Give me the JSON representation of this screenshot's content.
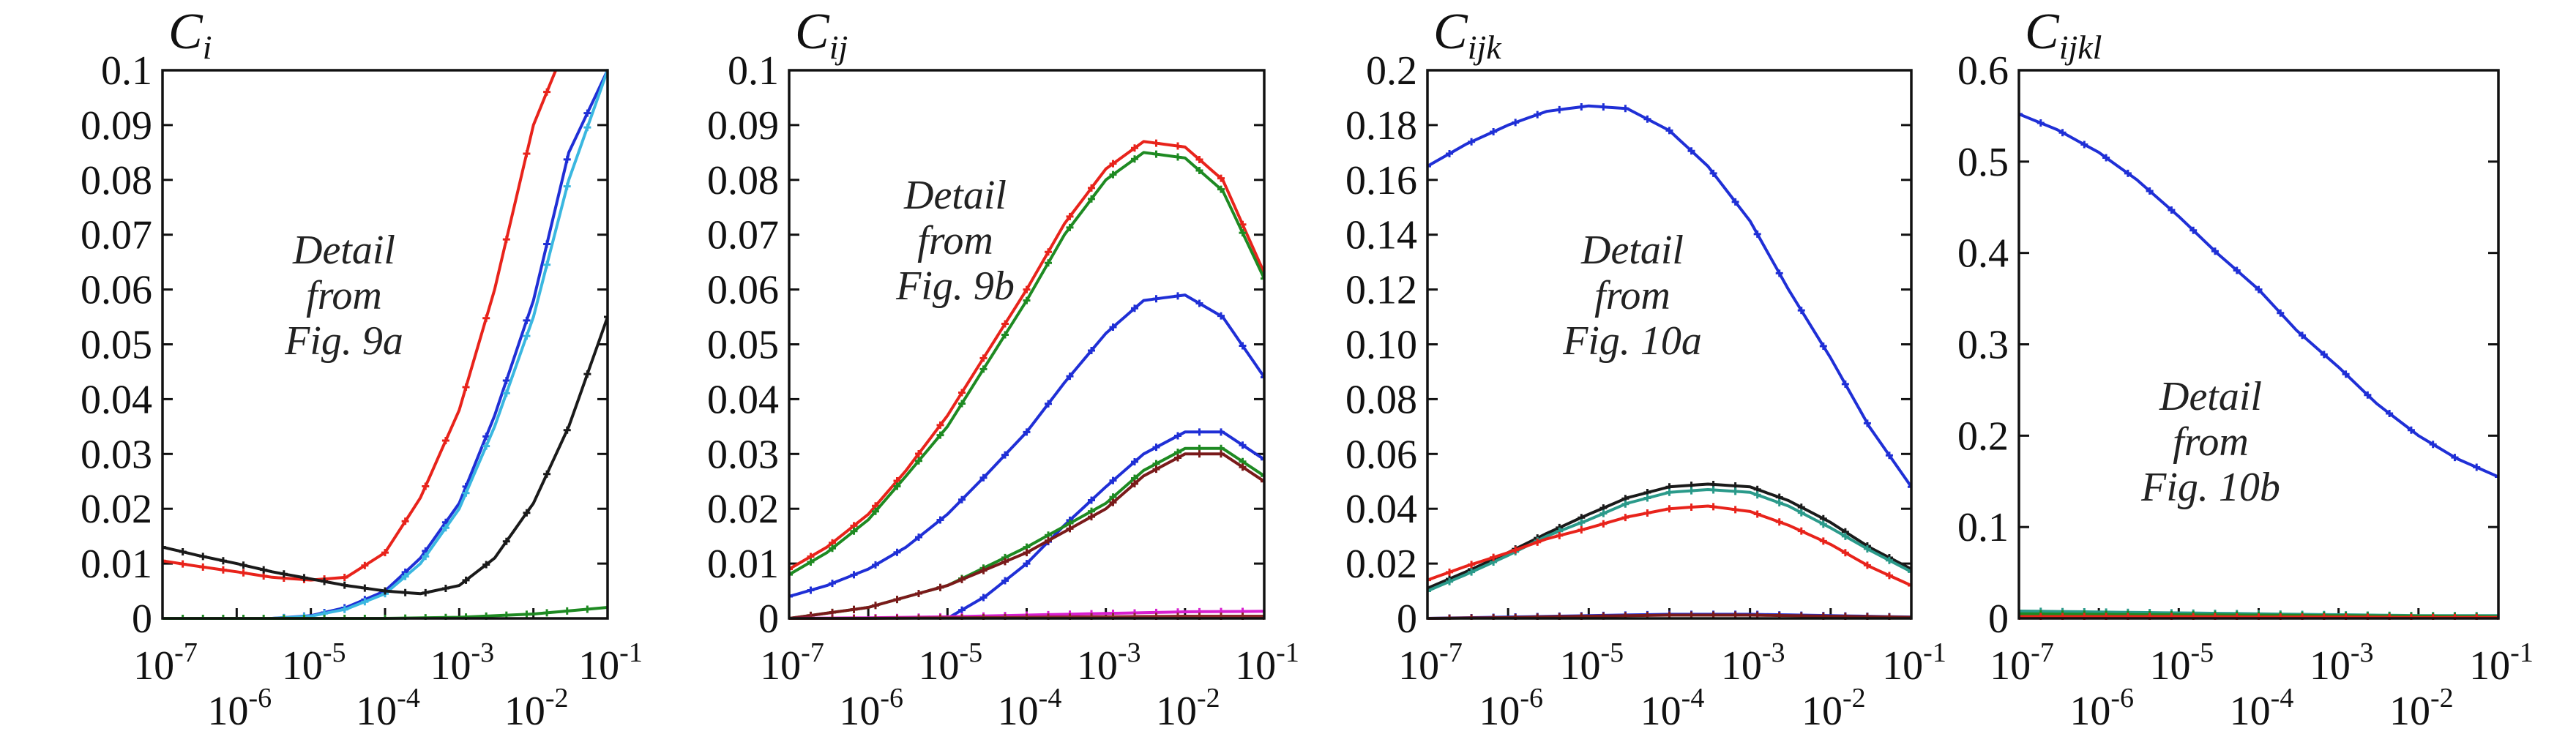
{
  "chart_data": [
    {
      "type": "line",
      "title": "C",
      "title_sub": "i",
      "xscale": "log",
      "xlim": [
        1e-07,
        0.1
      ],
      "ylim": [
        0,
        0.1
      ],
      "yticks": [
        "0",
        "0.01",
        "0.02",
        "0.03",
        "0.04",
        "0.05",
        "0.06",
        "0.07",
        "0.08",
        "0.09",
        "0.1"
      ],
      "xticks": [
        {
          "base": "10",
          "exp": "-7"
        },
        {
          "base": "10",
          "exp": "-6"
        },
        {
          "base": "10",
          "exp": "-5"
        },
        {
          "base": "10",
          "exp": "-4"
        },
        {
          "base": "10",
          "exp": "-3"
        },
        {
          "base": "10",
          "exp": "-2"
        },
        {
          "base": "10",
          "exp": "-1"
        }
      ],
      "annotation": [
        "Detail",
        "from",
        "Fig. 9a"
      ],
      "series": [
        {
          "color": "#e8231b",
          "x": [
            1e-07,
            3e-07,
            1e-06,
            3e-06,
            1e-05,
            3e-05,
            0.0001,
            0.0003,
            0.001,
            0.003,
            0.01,
            0.02
          ],
          "y": [
            0.0105,
            0.0095,
            0.0085,
            0.0075,
            0.007,
            0.0075,
            0.012,
            0.022,
            0.038,
            0.06,
            0.09,
            0.1
          ]
        },
        {
          "color": "#1f2fd6",
          "x": [
            3e-06,
            1e-05,
            3e-05,
            0.0001,
            0.0003,
            0.001,
            0.003,
            0.01,
            0.03,
            0.1
          ],
          "y": [
            0.0,
            0.0005,
            0.002,
            0.005,
            0.011,
            0.021,
            0.037,
            0.058,
            0.085,
            0.1
          ]
        },
        {
          "color": "#3ab7e0",
          "x": [
            3e-06,
            1e-05,
            3e-05,
            0.0001,
            0.0003,
            0.001,
            0.003,
            0.01,
            0.03,
            0.1
          ],
          "y": [
            0.0,
            0.0004,
            0.0017,
            0.0045,
            0.01,
            0.02,
            0.035,
            0.055,
            0.08,
            0.1
          ]
        },
        {
          "color": "#1a1a1a",
          "x": [
            1e-07,
            3e-07,
            1e-06,
            3e-06,
            1e-05,
            3e-05,
            0.0001,
            0.0003,
            0.001,
            0.003,
            0.01,
            0.03,
            0.1
          ],
          "y": [
            0.013,
            0.0115,
            0.01,
            0.0085,
            0.0072,
            0.006,
            0.005,
            0.0045,
            0.006,
            0.011,
            0.021,
            0.035,
            0.055
          ]
        },
        {
          "color": "#1e8a22",
          "x": [
            1e-07,
            1e-06,
            1e-05,
            0.0001,
            0.001,
            0.01,
            0.1
          ],
          "y": [
            0,
            0,
            0,
            0,
            0.0002,
            0.0008,
            0.002
          ]
        }
      ]
    },
    {
      "type": "line",
      "title": "C",
      "title_sub": "ij",
      "xscale": "log",
      "xlim": [
        1e-07,
        0.1
      ],
      "ylim": [
        0,
        0.1
      ],
      "yticks": [
        "0",
        "0.01",
        "0.02",
        "0.03",
        "0.04",
        "0.05",
        "0.06",
        "0.07",
        "0.08",
        "0.09",
        "0.1"
      ],
      "xticks": [
        {
          "base": "10",
          "exp": "-7"
        },
        {
          "base": "10",
          "exp": "-6"
        },
        {
          "base": "10",
          "exp": "-5"
        },
        {
          "base": "10",
          "exp": "-4"
        },
        {
          "base": "10",
          "exp": "-3"
        },
        {
          "base": "10",
          "exp": "-2"
        },
        {
          "base": "10",
          "exp": "-1"
        }
      ],
      "annotation": [
        "Detail",
        "from",
        "Fig. 9b"
      ],
      "series": [
        {
          "color": "#e8231b",
          "x": [
            1e-07,
            3e-07,
            1e-06,
            3e-06,
            1e-05,
            3e-05,
            0.0001,
            0.0003,
            0.001,
            0.003,
            0.01,
            0.03,
            0.1
          ],
          "y": [
            0.009,
            0.013,
            0.019,
            0.027,
            0.037,
            0.048,
            0.06,
            0.072,
            0.082,
            0.087,
            0.086,
            0.08,
            0.063
          ]
        },
        {
          "color": "#1e8a22",
          "x": [
            1e-07,
            3e-07,
            1e-06,
            3e-06,
            1e-05,
            3e-05,
            0.0001,
            0.0003,
            0.001,
            0.003,
            0.01,
            0.03,
            0.1
          ],
          "y": [
            0.008,
            0.012,
            0.018,
            0.026,
            0.035,
            0.046,
            0.058,
            0.07,
            0.08,
            0.085,
            0.084,
            0.078,
            0.062
          ]
        },
        {
          "color": "#1f2fd6",
          "x": [
            1e-07,
            3e-07,
            1e-06,
            3e-06,
            1e-05,
            3e-05,
            0.0001,
            0.0003,
            0.001,
            0.003,
            0.01,
            0.03,
            0.1
          ],
          "y": [
            0.004,
            0.006,
            0.009,
            0.013,
            0.019,
            0.026,
            0.034,
            0.043,
            0.052,
            0.058,
            0.059,
            0.055,
            0.044
          ]
        },
        {
          "color": "#1f2fd6",
          "x": [
            1e-05,
            3e-05,
            0.0001,
            0.0003,
            0.001,
            0.003,
            0.01,
            0.03,
            0.1
          ],
          "y": [
            0.0,
            0.004,
            0.01,
            0.017,
            0.024,
            0.03,
            0.034,
            0.034,
            0.029
          ]
        },
        {
          "color": "#1e8a22",
          "x": [
            1e-07,
            1e-06,
            1e-05,
            0.0001,
            0.001,
            0.003,
            0.01,
            0.03,
            0.1
          ],
          "y": [
            0.0,
            0.002,
            0.006,
            0.013,
            0.021,
            0.027,
            0.031,
            0.031,
            0.026
          ]
        },
        {
          "color": "#7a1a1a",
          "x": [
            1e-07,
            1e-06,
            1e-05,
            0.0001,
            0.001,
            0.003,
            0.01,
            0.03,
            0.1
          ],
          "y": [
            0.0,
            0.002,
            0.006,
            0.012,
            0.02,
            0.026,
            0.03,
            0.03,
            0.025
          ]
        },
        {
          "color": "#d81fd0",
          "x": [
            1e-07,
            1e-06,
            1e-05,
            0.0001,
            0.001,
            0.01,
            0.1
          ],
          "y": [
            0,
            0.0001,
            0.0003,
            0.0006,
            0.0009,
            0.0012,
            0.0013
          ]
        },
        {
          "color": "#8a2a2a",
          "x": [
            1e-07,
            1e-06,
            1e-05,
            0.0001,
            0.001,
            0.01,
            0.1
          ],
          "y": [
            0,
            0,
            0.0001,
            0.0002,
            0.0003,
            0.0004,
            0.0004
          ]
        }
      ]
    },
    {
      "type": "line",
      "title": "C",
      "title_sub": "ijk",
      "xscale": "log",
      "xlim": [
        1e-07,
        0.1
      ],
      "ylim": [
        0,
        0.2
      ],
      "yticks": [
        "0",
        "0.02",
        "0.04",
        "0.06",
        "0.08",
        "0.10",
        "0.12",
        "0.14",
        "0.16",
        "0.18",
        "0.2"
      ],
      "xticks": [
        {
          "base": "10",
          "exp": "-7"
        },
        {
          "base": "10",
          "exp": "-6"
        },
        {
          "base": "10",
          "exp": "-5"
        },
        {
          "base": "10",
          "exp": "-4"
        },
        {
          "base": "10",
          "exp": "-3"
        },
        {
          "base": "10",
          "exp": "-2"
        },
        {
          "base": "10",
          "exp": "-1"
        }
      ],
      "annotation": [
        "Detail",
        "from",
        "Fig. 10a"
      ],
      "series": [
        {
          "color": "#1f2fd6",
          "x": [
            1e-07,
            3e-07,
            1e-06,
            3e-06,
            1e-05,
            3e-05,
            0.0001,
            0.0003,
            0.001,
            0.003,
            0.01,
            0.03,
            0.1
          ],
          "y": [
            0.165,
            0.173,
            0.18,
            0.185,
            0.187,
            0.186,
            0.178,
            0.165,
            0.145,
            0.12,
            0.095,
            0.07,
            0.048
          ]
        },
        {
          "color": "#1a1a1a",
          "x": [
            1e-07,
            3e-07,
            1e-06,
            3e-06,
            1e-05,
            3e-05,
            0.0001,
            0.0003,
            0.001,
            0.003,
            0.01,
            0.03,
            0.1
          ],
          "y": [
            0.011,
            0.017,
            0.024,
            0.031,
            0.038,
            0.044,
            0.048,
            0.049,
            0.048,
            0.043,
            0.035,
            0.026,
            0.018
          ]
        },
        {
          "color": "#2a9a8a",
          "x": [
            1e-07,
            3e-07,
            1e-06,
            3e-06,
            1e-05,
            3e-05,
            0.0001,
            0.0003,
            0.001,
            0.003,
            0.01,
            0.03,
            0.1
          ],
          "y": [
            0.01,
            0.016,
            0.023,
            0.03,
            0.036,
            0.042,
            0.046,
            0.047,
            0.046,
            0.041,
            0.033,
            0.025,
            0.017
          ]
        },
        {
          "color": "#e8231b",
          "x": [
            1e-07,
            3e-07,
            1e-06,
            3e-06,
            1e-05,
            3e-05,
            0.0001,
            0.0003,
            0.001,
            0.003,
            0.01,
            0.03,
            0.1
          ],
          "y": [
            0.014,
            0.019,
            0.024,
            0.029,
            0.033,
            0.037,
            0.04,
            0.041,
            0.039,
            0.034,
            0.027,
            0.019,
            0.012
          ]
        },
        {
          "color": "#1f2fd6",
          "x": [
            1e-07,
            1e-06,
            1e-05,
            0.0001,
            0.001,
            0.01,
            0.1
          ],
          "y": [
            0,
            0.0005,
            0.001,
            0.0015,
            0.0015,
            0.001,
            0.0005
          ]
        },
        {
          "color": "#7a1a1a",
          "x": [
            1e-07,
            1e-06,
            1e-05,
            0.0001,
            0.001,
            0.01,
            0.1
          ],
          "y": [
            0,
            0.0003,
            0.0008,
            0.0012,
            0.0012,
            0.0008,
            0.0004
          ]
        }
      ]
    },
    {
      "type": "line",
      "title": "C",
      "title_sub": "ijkl",
      "xscale": "log",
      "xlim": [
        1e-07,
        0.1
      ],
      "ylim": [
        0,
        0.6
      ],
      "yticks": [
        "0",
        "0.1",
        "0.2",
        "0.3",
        "0.4",
        "0.5",
        "0.6"
      ],
      "xticks": [
        {
          "base": "10",
          "exp": "-7"
        },
        {
          "base": "10",
          "exp": "-6"
        },
        {
          "base": "10",
          "exp": "-5"
        },
        {
          "base": "10",
          "exp": "-4"
        },
        {
          "base": "10",
          "exp": "-3"
        },
        {
          "base": "10",
          "exp": "-2"
        },
        {
          "base": "10",
          "exp": "-1"
        }
      ],
      "annotation": [
        "Detail",
        "from",
        "Fig. 10b"
      ],
      "series": [
        {
          "color": "#1f2fd6",
          "x": [
            1e-07,
            3e-07,
            1e-06,
            3e-06,
            1e-05,
            3e-05,
            0.0001,
            0.0003,
            0.001,
            0.003,
            0.01,
            0.03,
            0.1
          ],
          "y": [
            0.552,
            0.535,
            0.51,
            0.48,
            0.44,
            0.4,
            0.36,
            0.315,
            0.275,
            0.235,
            0.2,
            0.175,
            0.155
          ]
        },
        {
          "color": "#2a9a8a",
          "x": [
            1e-07,
            1e-06,
            1e-05,
            0.0001,
            0.001,
            0.01,
            0.1
          ],
          "y": [
            0.008,
            0.007,
            0.006,
            0.005,
            0.004,
            0.003,
            0.003
          ]
        },
        {
          "color": "#1e8a22",
          "x": [
            1e-07,
            1e-06,
            1e-05,
            0.0001,
            0.001,
            0.01,
            0.1
          ],
          "y": [
            0.005,
            0.0045,
            0.004,
            0.0035,
            0.003,
            0.0025,
            0.002
          ]
        },
        {
          "color": "#e8231b",
          "x": [
            1e-07,
            1e-06,
            1e-05,
            0.0001,
            0.001,
            0.01,
            0.1
          ],
          "y": [
            0.002,
            0.002,
            0.002,
            0.0015,
            0.0015,
            0.001,
            0.001
          ]
        }
      ]
    }
  ]
}
